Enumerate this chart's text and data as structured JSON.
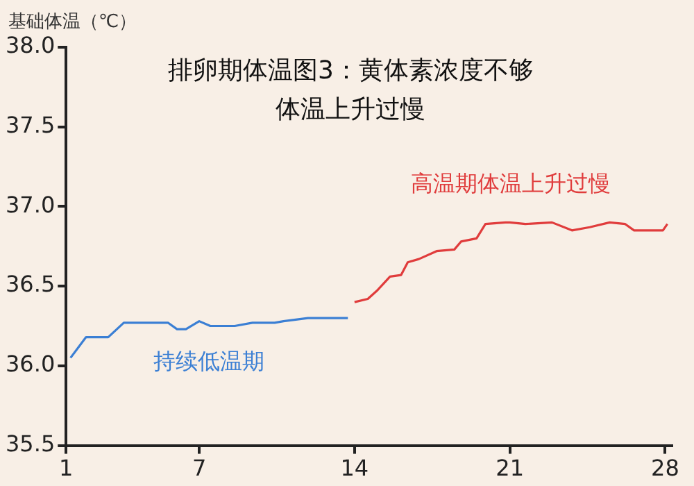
{
  "chart_data": {
    "type": "line",
    "title": "排卵期体温图3：黄体素浓度不够体温上升过慢",
    "ylabel": "基础体温（℃）",
    "xlim": [
      1,
      28.3
    ],
    "xticks": [
      1,
      7,
      14,
      21,
      28
    ],
    "ylim": [
      35.5,
      38.0
    ],
    "yticks": [
      {
        "value": 35.5,
        "label": "35.5"
      },
      {
        "value": 36,
        "label": "36.0"
      },
      {
        "value": 36.5,
        "label": "36.5"
      },
      {
        "value": 37,
        "label": "37.0"
      },
      {
        "value": 37.5,
        "label": "37.5"
      },
      {
        "value": 38,
        "label": "38.0"
      }
    ],
    "grid": false,
    "legend": false,
    "marker": "none",
    "line_style": "solid",
    "series": [
      {
        "name": "持续低温期",
        "color": "#3b7fd4",
        "x": [
          1.2,
          1.9,
          2.9,
          3.6,
          5.6,
          6.0,
          6.4,
          7.0,
          7.5,
          8.6,
          9.4,
          10.4,
          10.8,
          11.9,
          13.7
        ],
        "values": [
          36.05,
          36.18,
          36.18,
          36.27,
          36.27,
          36.23,
          36.23,
          36.28,
          36.25,
          36.25,
          36.27,
          36.27,
          36.28,
          36.3,
          36.3
        ]
      },
      {
        "name": "高温期体温上升过慢",
        "color": "#e03c3c",
        "x": [
          14.0,
          14.6,
          15.0,
          15.6,
          16.1,
          16.4,
          16.9,
          17.7,
          18.5,
          18.8,
          19.5,
          19.9,
          20.8,
          21.0,
          21.7,
          22.9,
          23.8,
          24.6,
          25.5,
          26.2,
          26.6,
          27.9,
          28.1
        ],
        "values": [
          36.4,
          36.42,
          36.47,
          36.56,
          36.57,
          36.65,
          36.67,
          36.72,
          36.73,
          36.78,
          36.8,
          36.89,
          36.9,
          36.9,
          36.89,
          36.9,
          36.85,
          36.87,
          36.9,
          36.89,
          36.85,
          36.85,
          36.89
        ]
      }
    ]
  }
}
